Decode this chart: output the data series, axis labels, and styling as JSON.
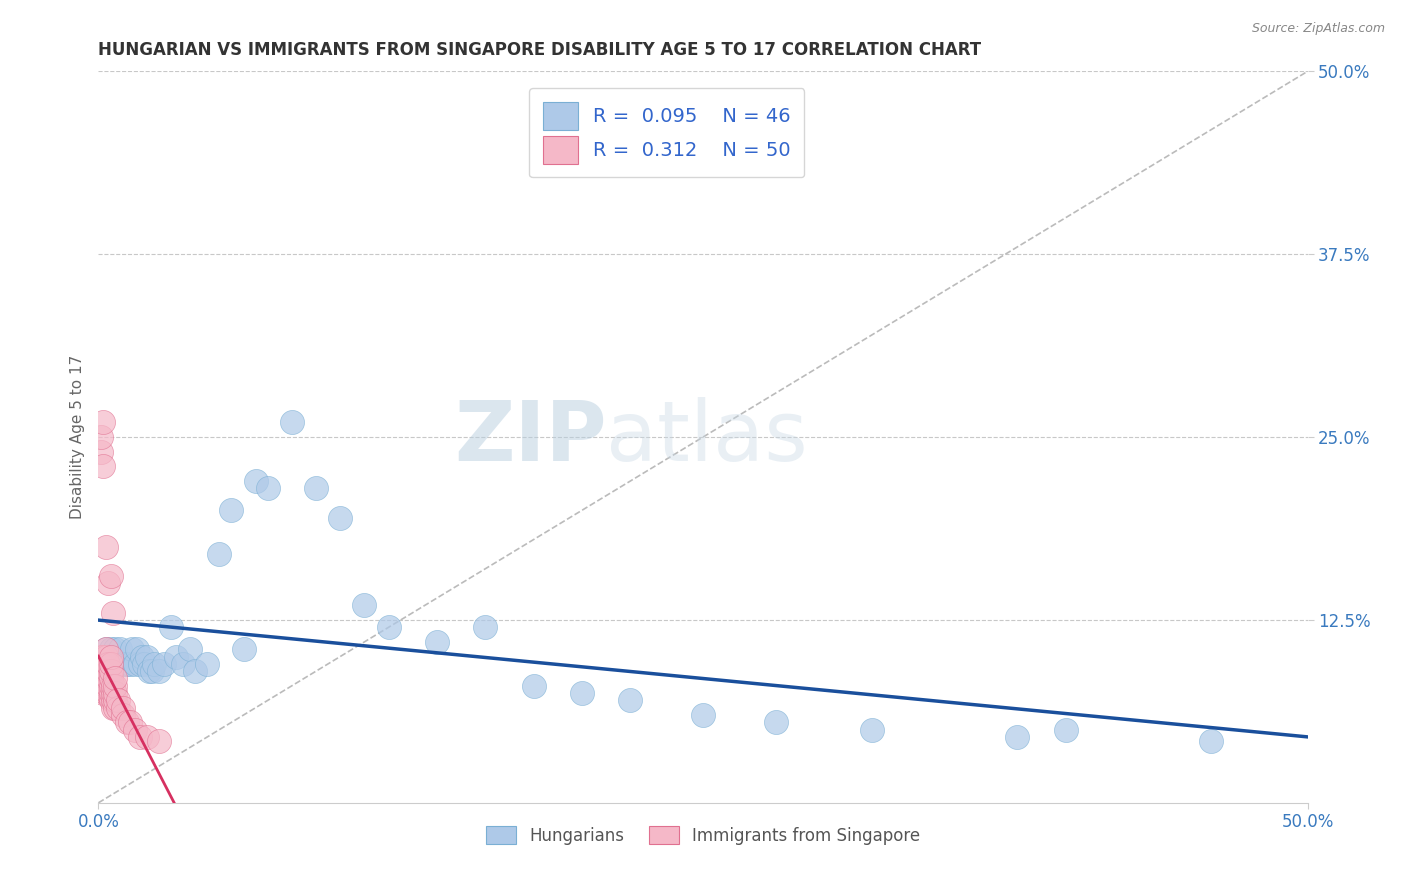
{
  "title": "HUNGARIAN VS IMMIGRANTS FROM SINGAPORE DISABILITY AGE 5 TO 17 CORRELATION CHART",
  "source": "Source: ZipAtlas.com",
  "ylabel": "Disability Age 5 to 17",
  "xlim": [
    0.0,
    0.5
  ],
  "ylim": [
    0.0,
    0.5
  ],
  "series": [
    {
      "name": "Hungarians",
      "R": 0.095,
      "N": 46,
      "color": "#aec9e8",
      "edge_color": "#7aafd4",
      "trend_color": "#1a4f9c",
      "trend_style": "solid",
      "trend_lw": 2.5,
      "points_x": [
        0.003,
        0.005,
        0.007,
        0.009,
        0.01,
        0.012,
        0.013,
        0.014,
        0.015,
        0.016,
        0.017,
        0.018,
        0.019,
        0.02,
        0.021,
        0.022,
        0.023,
        0.025,
        0.027,
        0.03,
        0.032,
        0.035,
        0.038,
        0.04,
        0.045,
        0.05,
        0.055,
        0.06,
        0.065,
        0.07,
        0.08,
        0.09,
        0.1,
        0.11,
        0.12,
        0.14,
        0.16,
        0.18,
        0.2,
        0.22,
        0.25,
        0.28,
        0.32,
        0.38,
        0.4,
        0.46
      ],
      "points_y": [
        0.105,
        0.105,
        0.105,
        0.105,
        0.095,
        0.095,
        0.095,
        0.105,
        0.095,
        0.105,
        0.095,
        0.1,
        0.095,
        0.1,
        0.09,
        0.09,
        0.095,
        0.09,
        0.095,
        0.12,
        0.1,
        0.095,
        0.105,
        0.09,
        0.095,
        0.17,
        0.2,
        0.105,
        0.22,
        0.215,
        0.26,
        0.215,
        0.195,
        0.135,
        0.12,
        0.11,
        0.12,
        0.08,
        0.075,
        0.07,
        0.06,
        0.055,
        0.05,
        0.045,
        0.05,
        0.042
      ]
    },
    {
      "name": "Immigrants from Singapore",
      "R": 0.312,
      "N": 50,
      "color": "#f5b8c8",
      "edge_color": "#e07090",
      "trend_color": "#d63060",
      "trend_style": "solid",
      "trend_lw": 2.0,
      "points_x": [
        0.001,
        0.001,
        0.001,
        0.001,
        0.001,
        0.002,
        0.002,
        0.002,
        0.002,
        0.002,
        0.002,
        0.003,
        0.003,
        0.003,
        0.003,
        0.003,
        0.003,
        0.003,
        0.004,
        0.004,
        0.004,
        0.004,
        0.004,
        0.005,
        0.005,
        0.005,
        0.005,
        0.005,
        0.005,
        0.005,
        0.006,
        0.006,
        0.006,
        0.006,
        0.007,
        0.007,
        0.007,
        0.007,
        0.007,
        0.008,
        0.008,
        0.01,
        0.01,
        0.012,
        0.013,
        0.015,
        0.017,
        0.02,
        0.025,
        0.001
      ],
      "points_y": [
        0.08,
        0.085,
        0.09,
        0.095,
        0.1,
        0.075,
        0.08,
        0.085,
        0.09,
        0.095,
        0.1,
        0.075,
        0.08,
        0.085,
        0.09,
        0.095,
        0.1,
        0.105,
        0.075,
        0.08,
        0.085,
        0.09,
        0.095,
        0.07,
        0.075,
        0.08,
        0.085,
        0.09,
        0.095,
        0.1,
        0.065,
        0.07,
        0.075,
        0.08,
        0.065,
        0.07,
        0.075,
        0.08,
        0.085,
        0.065,
        0.07,
        0.06,
        0.065,
        0.055,
        0.055,
        0.05,
        0.045,
        0.045,
        0.042,
        0.24
      ]
    }
  ],
  "pink_outliers_x": [
    0.001,
    0.002,
    0.002,
    0.003,
    0.004,
    0.005,
    0.006
  ],
  "pink_outliers_y": [
    0.25,
    0.23,
    0.26,
    0.175,
    0.15,
    0.155,
    0.13
  ],
  "background_color": "#ffffff",
  "grid_color": "#c8c8c8",
  "watermark": "ZIPatlas",
  "diagonal_line_color": "#bbbbbb",
  "diagonal_line_style": "--"
}
